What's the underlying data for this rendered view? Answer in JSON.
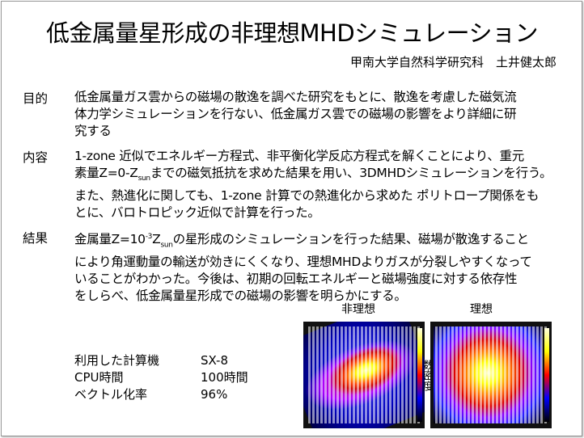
{
  "title": "低金属量星形成の非理想MHDシミュレーション",
  "author": "甲南大学自然科学研究科　土井健太郎",
  "sections": [
    {
      "label": "目的",
      "lines": [
        {
          "pre": "低金属量ガス雲からの磁場の散逸を調べた研究をもとに、散逸を考慮した磁気流"
        },
        {
          "pre": "体力学シミュレーションを行ない、低金属ガス雲での磁場の影響をより詳細に研"
        },
        {
          "pre": "究する"
        }
      ]
    },
    {
      "label": "内容",
      "lines": [
        {
          "pre": "1-zone 近似でエネルギー方程式、非平衡化学反応方程式を解くことにより、重元"
        },
        {
          "pre": "素量Z=0-Z",
          "sub": "sun",
          "post": "までの磁気抵抗を求めた結果を用い、3DMHDシミュレーションを行う。"
        },
        {
          "pre": "また、熱進化に関しても、1-zone 計算での熱進化から求めた ポリトロープ関係をも"
        },
        {
          "pre": "とに、バロトロピック近似で計算を行った。"
        }
      ]
    },
    {
      "label": "結果",
      "lines": [
        {
          "pre": "金属量Z=10",
          "sup": "-3",
          "mid": "Z",
          "sub": "sun",
          "post": "の星形成のシミュレーションを行った結果、磁場が散逸すること"
        },
        {
          "pre": "により角運動量の輸送が効きにくくなり、理想MHDよりガスが分裂しやすくなって"
        },
        {
          "pre": "いることがわかった。今後は、初期の回転エネルギーと磁場強度に対する依存性"
        },
        {
          "pre": "をしらべ、低金属量星形成での磁場の影響を明らかにする。"
        }
      ]
    }
  ],
  "specs": [
    {
      "k": "利用した計算機",
      "v": "SX-8"
    },
    {
      "k": "CPU時間",
      "v": "100時間"
    },
    {
      "k": "ベクトル化率",
      "v": "96%"
    }
  ],
  "figures": {
    "left_caption": "非理想",
    "right_caption": "理想",
    "shared_label": "数密度"
  }
}
